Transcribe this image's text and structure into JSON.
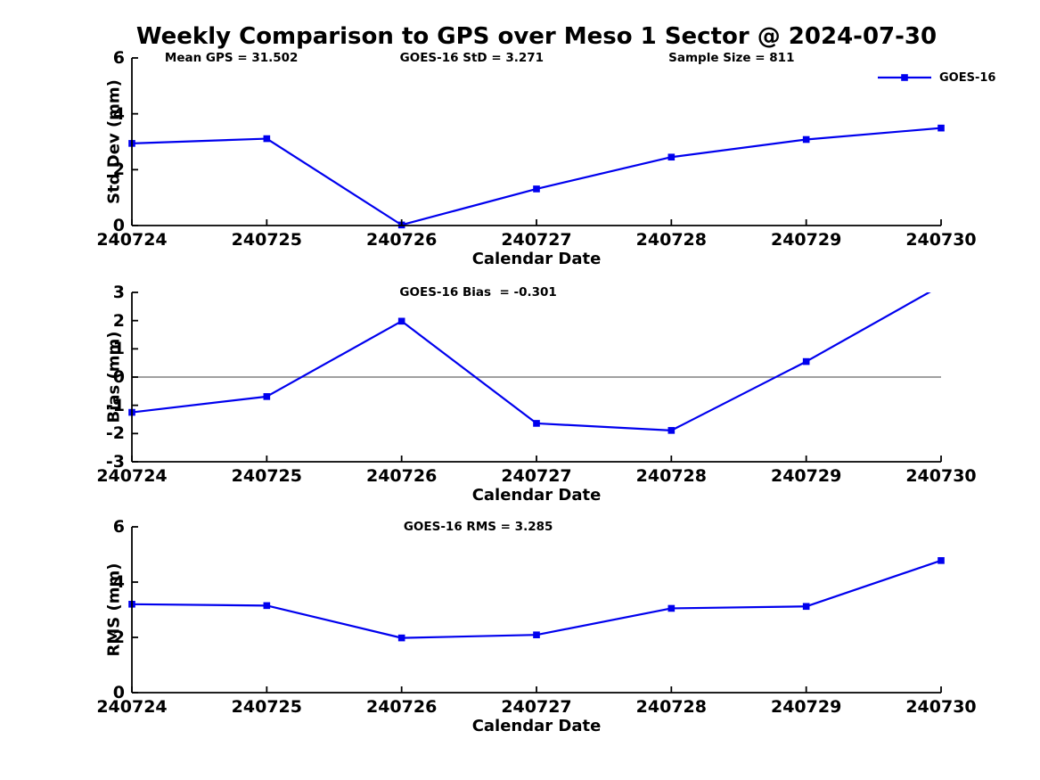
{
  "figure": {
    "title": "Weekly Comparison to GPS over Meso 1 Sector @ 2024-07-30"
  },
  "colors": {
    "line": "#0000EE",
    "zero_line": "#808080",
    "axis": "#000000",
    "background": "#FFFFFF"
  },
  "legend": {
    "label": "GOES-16",
    "position": "top-right"
  },
  "stats": {
    "mean_gps": 31.502,
    "goes16_std": 3.271,
    "sample_size": 811,
    "goes16_bias": -0.301,
    "goes16_rms": 3.285
  },
  "chart_data": [
    {
      "id": "std-dev",
      "type": "line",
      "categories": [
        "240724",
        "240725",
        "240726",
        "240727",
        "240728",
        "240729",
        "240730"
      ],
      "series": [
        {
          "name": "GOES-16",
          "values": [
            2.94,
            3.11,
            0.02,
            1.31,
            2.45,
            3.08,
            3.49
          ]
        }
      ],
      "xlabel": "Calendar Date",
      "ylabel": "Std Dev (mm)",
      "ylim": [
        0,
        6
      ],
      "yticks": [
        0,
        2,
        4,
        6
      ],
      "grid": false,
      "marker": "square",
      "zero_line": false,
      "annotations": [
        "Mean GPS = 31.502",
        "GOES-16 StD = 3.271",
        "Sample Size = 811"
      ]
    },
    {
      "id": "bias",
      "type": "line",
      "categories": [
        "240724",
        "240725",
        "240726",
        "240727",
        "240728",
        "240729",
        "240730"
      ],
      "series": [
        {
          "name": "GOES-16",
          "values": [
            -1.25,
            -0.69,
            1.98,
            -1.64,
            -1.89,
            0.55,
            3.24
          ]
        }
      ],
      "xlabel": "Calendar Date",
      "ylabel": "Bias (mm)",
      "ylim": [
        -3,
        3
      ],
      "yticks": [
        -3,
        -2,
        -1,
        0,
        1,
        2,
        3
      ],
      "grid": false,
      "marker": "square",
      "zero_line": true,
      "annotations": [
        "GOES-16 Bias  = -0.301"
      ]
    },
    {
      "id": "rms",
      "type": "line",
      "categories": [
        "240724",
        "240725",
        "240726",
        "240727",
        "240728",
        "240729",
        "240730"
      ],
      "series": [
        {
          "name": "GOES-16",
          "values": [
            3.2,
            3.15,
            1.98,
            2.09,
            3.05,
            3.12,
            4.78
          ]
        }
      ],
      "xlabel": "Calendar Date",
      "ylabel": "RMS (mm)",
      "ylim": [
        0,
        6
      ],
      "yticks": [
        0,
        2,
        4,
        6
      ],
      "grid": false,
      "marker": "square",
      "zero_line": false,
      "annotations": [
        "GOES-16 RMS = 3.285"
      ]
    }
  ]
}
